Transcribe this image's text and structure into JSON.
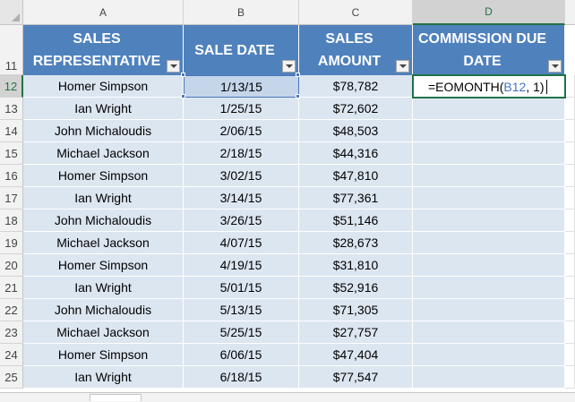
{
  "columns": [
    "A",
    "B",
    "C",
    "D"
  ],
  "header_row_number": "11",
  "headers": [
    {
      "line1": "SALES",
      "line2": "REPRESENTATIVE"
    },
    {
      "line1": "SALE DATE",
      "line2": ""
    },
    {
      "line1": "SALES",
      "line2": "AMOUNT"
    },
    {
      "line1": "COMMISSION DUE",
      "line2": "DATE"
    }
  ],
  "rows": [
    {
      "num": "12",
      "rep": "Homer Simpson",
      "date": "1/13/15",
      "amount": "$78,782"
    },
    {
      "num": "13",
      "rep": "Ian Wright",
      "date": "1/25/15",
      "amount": "$72,602"
    },
    {
      "num": "14",
      "rep": "John Michaloudis",
      "date": "2/06/15",
      "amount": "$48,503"
    },
    {
      "num": "15",
      "rep": "Michael Jackson",
      "date": "2/18/15",
      "amount": "$44,316"
    },
    {
      "num": "16",
      "rep": "Homer Simpson",
      "date": "3/02/15",
      "amount": "$47,810"
    },
    {
      "num": "17",
      "rep": "Ian Wright",
      "date": "3/14/15",
      "amount": "$77,361"
    },
    {
      "num": "18",
      "rep": "John Michaloudis",
      "date": "3/26/15",
      "amount": "$51,146"
    },
    {
      "num": "19",
      "rep": "Michael Jackson",
      "date": "4/07/15",
      "amount": "$28,673"
    },
    {
      "num": "20",
      "rep": "Homer Simpson",
      "date": "4/19/15",
      "amount": "$31,810"
    },
    {
      "num": "21",
      "rep": "Ian Wright",
      "date": "5/01/15",
      "amount": "$52,916"
    },
    {
      "num": "22",
      "rep": "John Michaloudis",
      "date": "5/13/15",
      "amount": "$71,305"
    },
    {
      "num": "23",
      "rep": "Michael Jackson",
      "date": "5/25/15",
      "amount": "$27,757"
    },
    {
      "num": "24",
      "rep": "Homer Simpson",
      "date": "6/06/15",
      "amount": "$47,404"
    },
    {
      "num": "25",
      "rep": "Ian Wright",
      "date": "6/18/15",
      "amount": "$77,547"
    }
  ],
  "formula": {
    "prefix": "=EOMONTH(",
    "ref": "B12",
    "suffix": ", 1)"
  },
  "colors": {
    "header_fill": "#4f81bd",
    "band_fill": "#dce6f1",
    "active_border": "#217346",
    "ref_color": "#4472c4"
  }
}
